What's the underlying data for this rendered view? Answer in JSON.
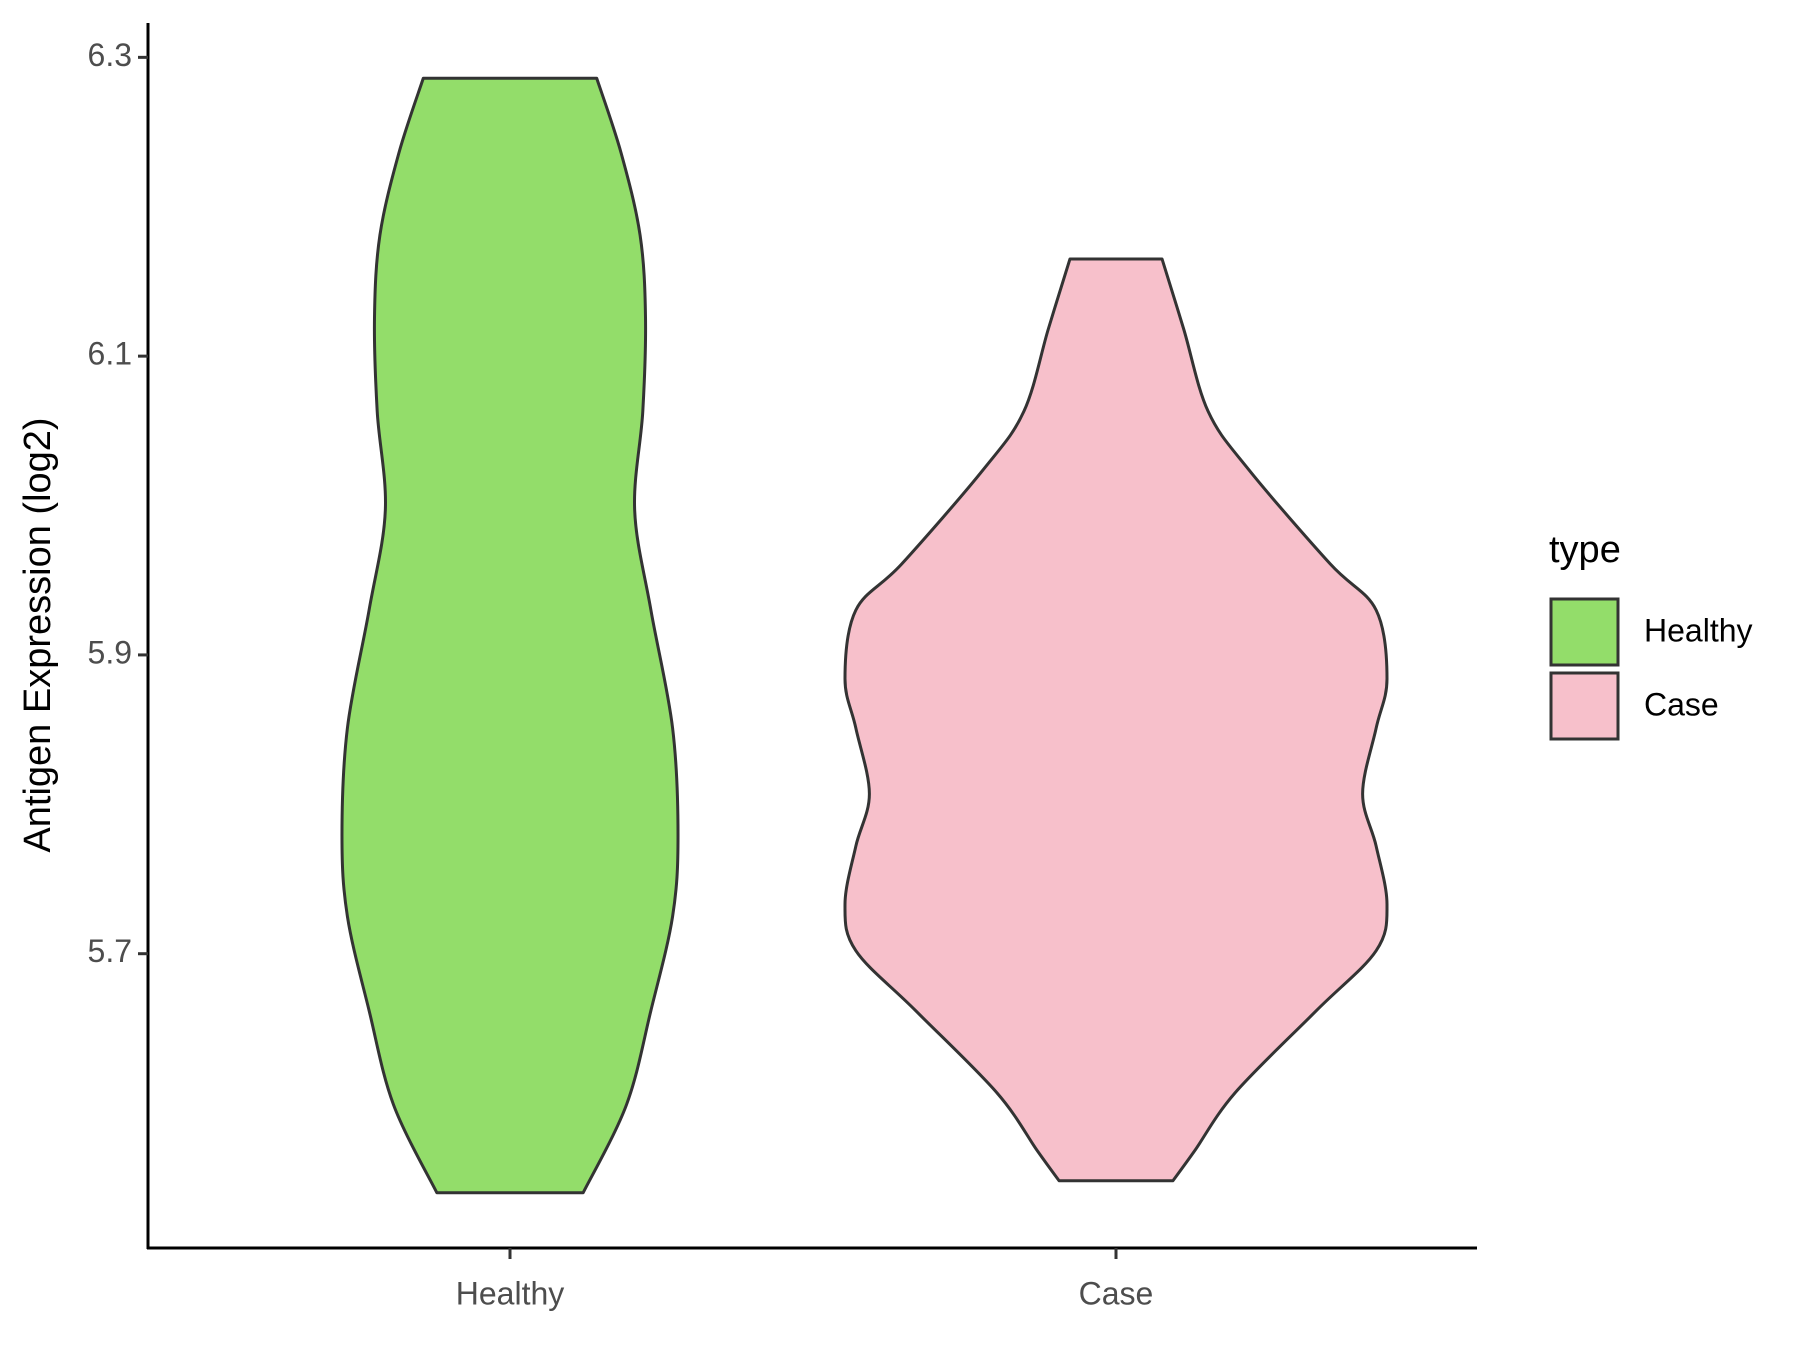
{
  "chart_data": {
    "type": "violin",
    "y_label": "Antigen Expression (log2)",
    "categories": [
      "Healthy",
      "Case"
    ],
    "legend_title": "type",
    "series": [
      {
        "name": "Healthy",
        "color": "#93dd6a",
        "y": [
          5.54,
          5.599,
          5.662,
          5.725,
          5.779,
          5.851,
          5.93,
          5.997,
          6.063,
          6.126,
          6.181,
          6.236,
          6.286
        ],
        "density": [
          0.27,
          0.43,
          0.52,
          0.6,
          0.62,
          0.6,
          0.52,
          0.46,
          0.49,
          0.5,
          0.48,
          0.41,
          0.32
        ]
      },
      {
        "name": "Case",
        "color": "#f7c0cb",
        "y": [
          5.548,
          5.568,
          5.607,
          5.662,
          5.702,
          5.733,
          5.772,
          5.807,
          5.851,
          5.884,
          5.93,
          5.961,
          6.024,
          6.063,
          6.118,
          6.165
        ],
        "density": [
          0.21,
          0.29,
          0.44,
          0.74,
          0.96,
          1.0,
          0.96,
          0.91,
          0.96,
          1.0,
          0.96,
          0.79,
          0.49,
          0.34,
          0.25,
          0.17
        ]
      }
    ],
    "ylim": [
      5.503,
      6.323
    ],
    "yticks": [
      5.7,
      5.9,
      6.1,
      6.3
    ],
    "legend": "right"
  }
}
